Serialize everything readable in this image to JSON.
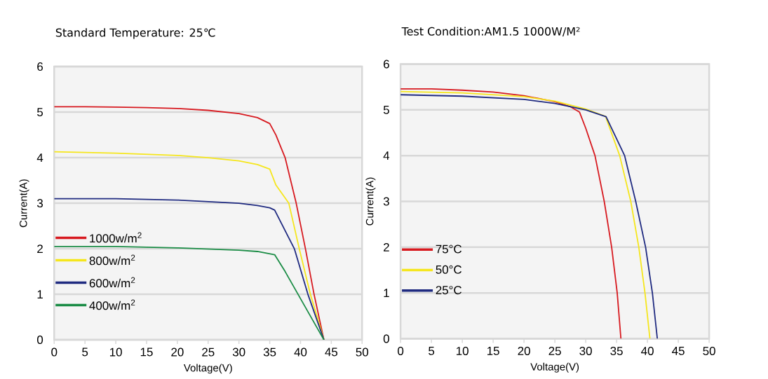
{
  "chart_data": [
    {
      "type": "line",
      "title": "Standard Temperature: 25℃",
      "xlabel": "Voltage(V)",
      "ylabel": "Current(A)",
      "xlim": [
        0,
        50
      ],
      "ylim": [
        0,
        6
      ],
      "xticks": [
        0,
        5,
        10,
        15,
        20,
        25,
        30,
        35,
        40,
        45,
        50
      ],
      "yticks": [
        0,
        1,
        2,
        3,
        4,
        5,
        6
      ],
      "grid": "y",
      "legend": "left",
      "line_style": "solid",
      "series": [
        {
          "name": "1000w/m$^{2}$",
          "color": "#d7191f",
          "x": [
            0,
            5,
            10,
            15,
            20,
            25,
            30,
            33,
            35,
            36,
            37.5,
            39.3,
            40.8,
            42.2,
            43.8
          ],
          "values": [
            5.12,
            5.12,
            5.11,
            5.1,
            5.08,
            5.04,
            4.97,
            4.88,
            4.75,
            4.5,
            4.0,
            3.0,
            2.0,
            1.0,
            0
          ]
        },
        {
          "name": "800w/m$^{2}$",
          "color": "#f5e61c",
          "x": [
            0,
            10,
            20,
            25,
            30,
            33,
            35,
            36,
            38.1,
            39.8,
            41.6,
            43.8
          ],
          "values": [
            4.13,
            4.1,
            4.05,
            4.0,
            3.93,
            3.85,
            3.75,
            3.4,
            3.0,
            2.0,
            1.0,
            0
          ]
        },
        {
          "name": "600w/m$^{2}$",
          "color": "#1f2a80",
          "x": [
            0,
            10,
            20,
            30,
            33,
            35,
            35.8,
            39.0,
            41.2,
            43.8
          ],
          "values": [
            3.1,
            3.1,
            3.07,
            3.0,
            2.95,
            2.9,
            2.85,
            2.0,
            1.0,
            0
          ]
        },
        {
          "name": "400w/m$^{2}$",
          "color": "#1a8c45",
          "x": [
            0,
            10,
            20,
            30,
            33,
            35.8,
            37.5,
            39.6,
            43.8
          ],
          "values": [
            2.05,
            2.05,
            2.02,
            1.97,
            1.94,
            1.87,
            1.5,
            1.0,
            0
          ]
        }
      ]
    },
    {
      "type": "line",
      "title": "Test Condition:AM1.5 1000W/M²",
      "xlabel": "Voltage(V)",
      "ylabel": "Current(A)",
      "xlim": [
        0,
        50
      ],
      "ylim": [
        0,
        6
      ],
      "xticks": [
        0,
        5,
        10,
        15,
        20,
        25,
        30,
        35,
        40,
        45,
        50
      ],
      "yticks": [
        0,
        1,
        2,
        3,
        4,
        5,
        6
      ],
      "grid": "y",
      "legend": "left",
      "line_style": "solid",
      "series": [
        {
          "name": "75°C",
          "color": "#d7191f",
          "x": [
            0,
            5,
            10,
            15,
            20,
            25,
            27.5,
            29,
            30,
            31.5,
            33,
            34.2,
            35.1,
            35.7
          ],
          "values": [
            5.46,
            5.46,
            5.43,
            5.39,
            5.31,
            5.18,
            5.07,
            4.95,
            4.6,
            4.0,
            3.0,
            2.0,
            1.0,
            0
          ]
        },
        {
          "name": "50°C",
          "color": "#f5e61c",
          "x": [
            0,
            10,
            20,
            25,
            30,
            33.2,
            35.5,
            37.3,
            38.6,
            39.6,
            40.4
          ],
          "values": [
            5.4,
            5.37,
            5.29,
            5.19,
            5.02,
            4.86,
            4.0,
            3.0,
            2.0,
            1.0,
            0
          ]
        },
        {
          "name": "25°C",
          "color": "#1f2a80",
          "x": [
            0,
            10,
            20,
            25,
            30,
            33.3,
            36.3,
            38.1,
            39.7,
            40.8,
            41.6
          ],
          "values": [
            5.33,
            5.3,
            5.23,
            5.14,
            5.0,
            4.85,
            4.0,
            3.0,
            2.0,
            1.0,
            0
          ]
        }
      ]
    }
  ]
}
